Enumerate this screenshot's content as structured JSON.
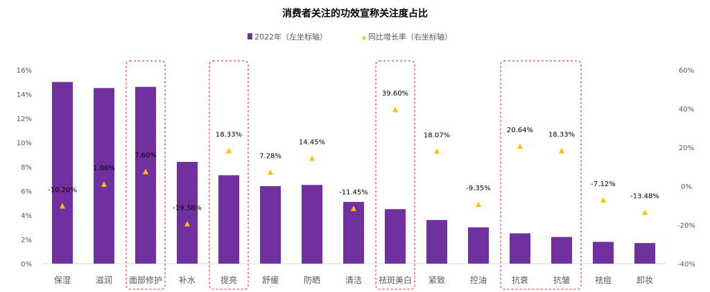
{
  "chart_data": {
    "type": "bar",
    "title": "消费者关注的功效宣称关注度占比",
    "legend": [
      {
        "name": "2022年（左坐标轴）",
        "color": "#7030A0",
        "marker": "square"
      },
      {
        "name": "同比增长率（右坐标轴）",
        "color": "#FFC000",
        "marker": "triangle"
      }
    ],
    "legend_position": "top",
    "categories": [
      "保湿",
      "滋润",
      "面部修护",
      "补水",
      "提亮",
      "舒缓",
      "防晒",
      "清洁",
      "祛斑美白",
      "紧致",
      "控油",
      "抗衰",
      "抗皱",
      "祛痘",
      "卸妆"
    ],
    "series": [
      {
        "name": "2022年（左坐标轴）",
        "type": "bar",
        "axis": "left",
        "values": [
          15.0,
          14.5,
          14.6,
          8.4,
          7.3,
          6.4,
          6.5,
          5.1,
          4.5,
          3.6,
          3.0,
          2.5,
          2.2,
          1.8,
          1.7
        ]
      },
      {
        "name": "同比增长率（右坐标轴）",
        "type": "scatter",
        "axis": "right",
        "values": [
          -10.2,
          1.06,
          7.6,
          -19.38,
          18.33,
          7.28,
          14.45,
          -11.45,
          39.6,
          18.07,
          -9.35,
          20.64,
          18.33,
          -7.12,
          -13.48
        ],
        "labels": [
          "-10.20%",
          "1.06%",
          "7.60%",
          "-19.38%",
          "18.33%",
          "7.28%",
          "14.45%",
          "-11.45%",
          "39.60%",
          "18.07%",
          "-9.35%",
          "20.64%",
          "18.33%",
          "-7.12%",
          "-13.48%"
        ]
      }
    ],
    "left_axis": {
      "ylim": [
        0,
        16
      ],
      "ticks": [
        "0%",
        "2%",
        "4%",
        "6%",
        "8%",
        "10%",
        "12%",
        "14%",
        "16%"
      ]
    },
    "right_axis": {
      "ylim": [
        -40,
        60
      ],
      "ticks": [
        "-40%",
        "-20%",
        "0%",
        "20%",
        "40%",
        "60%"
      ]
    },
    "highlight_groups": [
      [
        2
      ],
      [
        4
      ],
      [
        8
      ],
      [
        11,
        12
      ]
    ],
    "colors": {
      "bar": "#7030A0",
      "marker": "#FFC000",
      "highlight": "#E8474C",
      "axis_text": "#595959"
    }
  }
}
